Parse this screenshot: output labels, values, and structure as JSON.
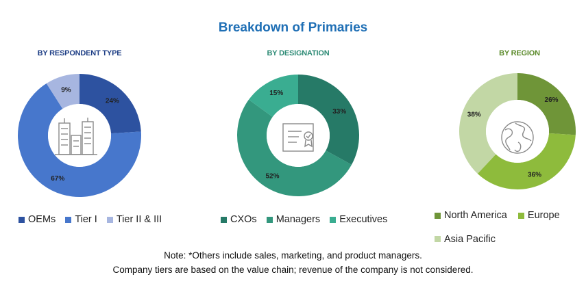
{
  "title": "Breakdown of Primaries",
  "colors": {
    "title": "#1f6fb5"
  },
  "note": {
    "line1": "Note: *Others include sales, marketing, and product managers.",
    "line2": "Company tiers are based on the value chain; revenue of the company is not considered."
  },
  "chart_data": [
    {
      "type": "pie",
      "variant": "donut",
      "title": "BY RESPONDENT TYPE",
      "center_icon": "buildings-icon",
      "legend_position": "bottom",
      "categories": [
        "OEMs",
        "Tier I",
        "Tier II & III"
      ],
      "values": [
        24,
        67,
        9
      ],
      "value_labels": [
        "24%",
        "67%",
        "9%"
      ],
      "colors": [
        "#2d52a0",
        "#4777cc",
        "#a7b6e0"
      ]
    },
    {
      "type": "pie",
      "variant": "donut",
      "title": "BY DESIGNATION",
      "center_icon": "certificate-icon",
      "legend_position": "bottom",
      "categories": [
        "CXOs",
        "Managers",
        "Executives"
      ],
      "values": [
        33,
        52,
        15
      ],
      "value_labels": [
        "33%",
        "52%",
        "15%"
      ],
      "colors": [
        "#267a67",
        "#33977d",
        "#3aad91"
      ]
    },
    {
      "type": "pie",
      "variant": "donut",
      "title": "BY REGION",
      "center_icon": "globe-icon",
      "legend_position": "bottom",
      "categories": [
        "North America",
        "Europe",
        "Asia Pacific"
      ],
      "values": [
        26,
        36,
        38
      ],
      "value_labels": [
        "26%",
        "36%",
        "38%"
      ],
      "colors": [
        "#6f9538",
        "#8ebb3c",
        "#c2d7a5"
      ]
    }
  ]
}
